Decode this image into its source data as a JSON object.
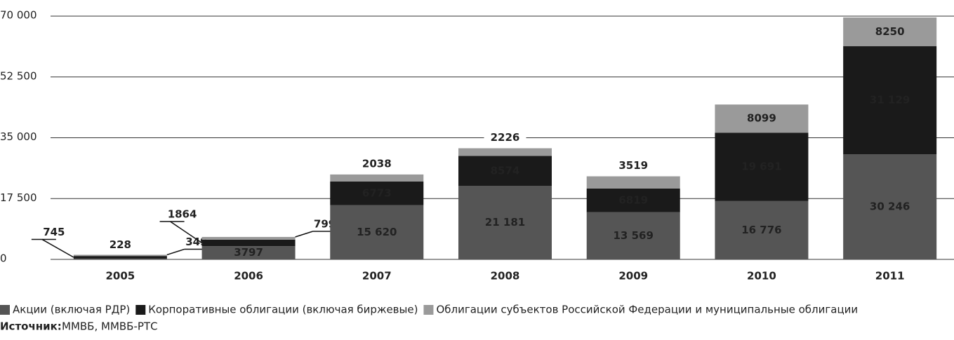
{
  "chart_data": {
    "type": "stacked_bar",
    "categories": [
      "2005",
      "2006",
      "2007",
      "2008",
      "2009",
      "2010",
      "2011"
    ],
    "series": [
      {
        "name": "Акции (включая РДР)",
        "color": "#555555",
        "values": [
          228,
          3797,
          15620,
          21181,
          13569,
          16776,
          30246
        ],
        "value_labels": [
          "228",
          "3797",
          "15 620",
          "21 181",
          "13 569",
          "16 776",
          "30 246"
        ]
      },
      {
        "name": "Корпоративные облигации (включая биржевые)",
        "color": "#1a1a1a",
        "values": [
          745,
          1864,
          6773,
          8574,
          6819,
          19691,
          31129
        ],
        "value_labels": [
          "745",
          "1864",
          "6773",
          "8574",
          "6819",
          "19 691",
          "31 129"
        ]
      },
      {
        "name": "Облигации субъектов Российской Федерации и муниципальные облигации",
        "color": "#9a9a9a",
        "values": [
          349,
          799,
          2038,
          2226,
          3519,
          8099,
          8250
        ],
        "value_labels": [
          "349",
          "799",
          "2038",
          "2226",
          "3519",
          "8099",
          "8250"
        ]
      }
    ],
    "ylim": [
      0,
      70000
    ],
    "yticks": [
      0,
      {
        "value": 17500,
        "label": "17 500"
      },
      {
        "value": 35000,
        "label": "35 000"
      },
      {
        "value": 52500,
        "label": "52 500"
      },
      {
        "value": 70000,
        "label": "70 000"
      }
    ],
    "grid": true,
    "source_label": "Источник:",
    "source": "ММВБ, ММВБ-РТС"
  }
}
